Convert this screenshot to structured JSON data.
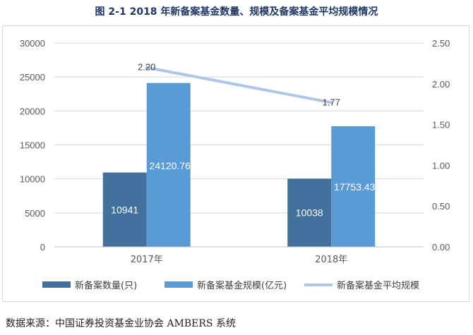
{
  "title": "图 2-1 2018 年新备案基金数量、规模及备案基金平均规模情况",
  "source": "数据来源：中国证券投资基金业协会 AMBERS 系统",
  "chart_data": {
    "type": "bar",
    "categories": [
      "2017年",
      "2018年"
    ],
    "series": [
      {
        "name": "新备案数量(只)",
        "kind": "bar",
        "axis": "left",
        "color": "#41719c",
        "values": [
          10941,
          10038
        ],
        "labels": [
          "10941",
          "10038"
        ]
      },
      {
        "name": "新备案基金规模(亿元)",
        "kind": "bar",
        "axis": "left",
        "color": "#5b9bd5",
        "values": [
          24120.76,
          17753.43
        ],
        "labels": [
          "24120.76",
          "17753.43"
        ]
      },
      {
        "name": "新备案基金平均规模",
        "kind": "line",
        "axis": "right",
        "color": "#adc5e7",
        "values": [
          2.2,
          1.77
        ],
        "labels": [
          "2.20",
          "1.77"
        ]
      }
    ],
    "y_left": {
      "min": 0,
      "max": 30000,
      "ticks": [
        "0",
        "5000",
        "10000",
        "15000",
        "20000",
        "25000",
        "30000"
      ]
    },
    "y_right": {
      "min": 0,
      "max": 2.5,
      "ticks": [
        "0.00",
        "0.50",
        "1.00",
        "1.50",
        "2.00",
        "2.50"
      ]
    },
    "grid": true,
    "legend": "bottom"
  }
}
